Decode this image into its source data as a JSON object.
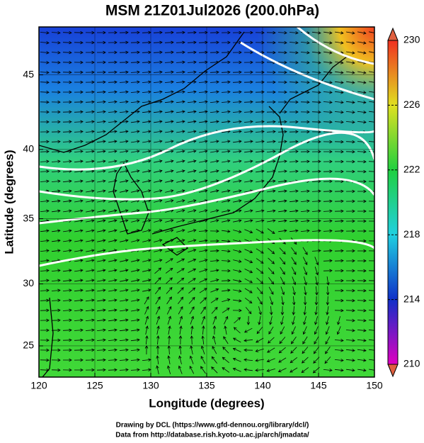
{
  "chart_data": {
    "type": "map",
    "title": "MSM 21Z01Jul2026 (200.0hPa)",
    "xlabel": "Longitude (degrees)",
    "ylabel": "Latitude  (degrees)",
    "projection": "mercator",
    "xlim": [
      120,
      150
    ],
    "xticks": [
      120,
      125,
      130,
      135,
      140,
      145,
      150
    ],
    "ylim": [
      22.4,
      48
    ],
    "yticks": [
      25,
      30,
      35,
      40,
      45
    ],
    "grid": true,
    "colorbar": {
      "lim": [
        210,
        230
      ],
      "ticks": [
        210,
        214,
        218,
        222,
        226,
        230
      ],
      "colors": [
        "#e000c0",
        "#1030c8",
        "#20d0e0",
        "#20d040",
        "#e0e020",
        "#f03020"
      ]
    },
    "notes": [
      "Drawing by DCL (https://www.gfd-dennou.org/library/dcl/)",
      "Data from http://database.rish.kyoto-u.ac.jp/arch/jmadata/"
    ]
  }
}
